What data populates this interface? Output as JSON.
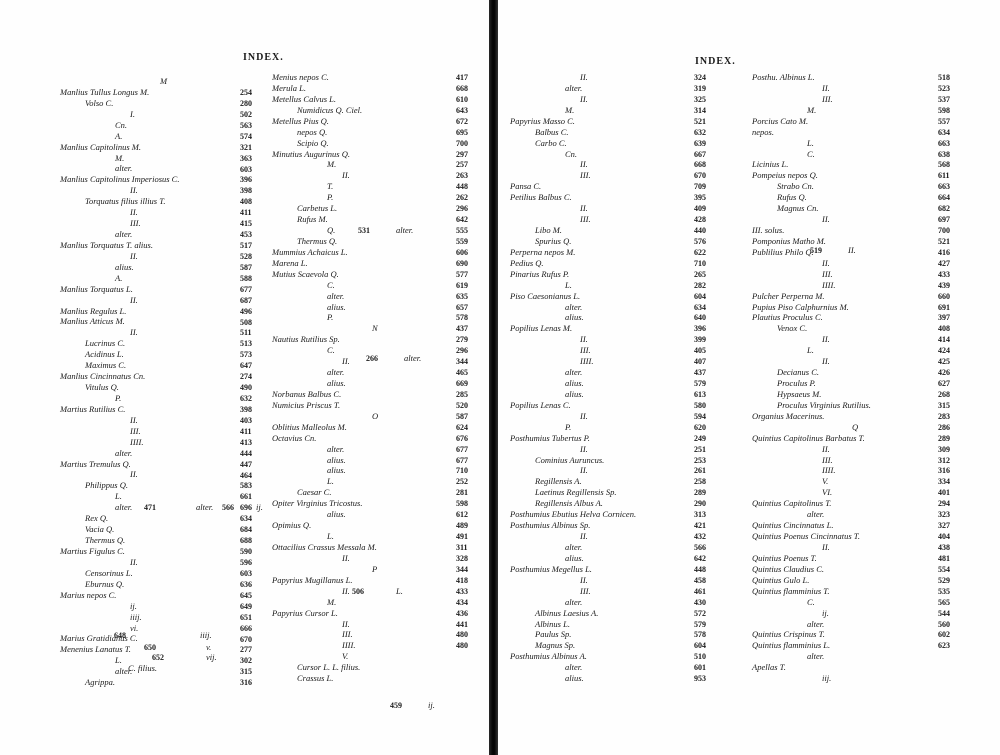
{
  "left_page": {
    "header": "INDEX.",
    "col1": [
      "M",
      "Manlius Tullus Longus M.",
      "Volso C.",
      "I.",
      "Cn.",
      "A.",
      "Manlius Capitolinus M.",
      "M.",
      "alter.",
      "Manlius Capitolinus Imperiosus C.",
      "II.",
      "Torquatus filius illius T.",
      "II.",
      "III.",
      "alter.",
      "Manlius Torquatus T. alius.",
      "II.",
      "alius.",
      "A.",
      "Manlius Torquatus L.",
      "II.",
      "Manlius Regulus L.",
      "Manlius Atticus M.",
      "II.",
      "Lucrinus C.",
      "Acidinus L.",
      "Maximus C.",
      "Manlius Cincinnatus Cn.",
      "Vitulus Q.",
      "P.",
      "Martius Rutilius C.",
      "II.",
      "III.",
      "IIII.",
      "alter.",
      "Martius Tremulus Q.",
      "II.",
      "Philippus Q.",
      "L.",
      "alter.",
      "Rex Q.",
      "Vacia Q.",
      "Thermus Q.",
      "Martius Figulus C.",
      "II.",
      "Censorinus L.",
      "Eburnus Q.",
      "Marius nepos C.",
      "ij.",
      "iiij.",
      "vi.",
      "Marius Gratidianus C.",
      "Menenius Lanatus T.",
      "L.",
      "alter.",
      "Agrippa."
    ],
    "col1_nums": [
      "254",
      "280",
      "502",
      "563",
      "574",
      "321",
      "363",
      "603",
      "396",
      "398",
      "408",
      "411",
      "415",
      "453",
      "517",
      "528",
      "587",
      "588",
      "677",
      "687",
      "496",
      "508",
      "511",
      "513",
      "573",
      "647",
      "274",
      "490",
      "632",
      "398",
      "403",
      "411",
      "413",
      "444",
      "447",
      "464",
      "583",
      "661",
      "696",
      "634",
      "684",
      "688",
      "590",
      "596",
      "603",
      "636",
      "645",
      "649",
      "651",
      "666",
      "670",
      "277",
      "302",
      "315",
      "316"
    ],
    "col2": [
      "Menius nepos C.",
      "Merula L.",
      "Metellus Calvus L.",
      "Numidicus Q. Ciel.",
      "Metellus Pius Q.",
      "nepos Q.",
      "Scipio Q.",
      "Minutius Augurinus Q.",
      "M.",
      "II.",
      "T.",
      "P.",
      "Carbetus L.",
      "Rufus M.",
      "Q.",
      "Thermus Q.",
      "Mummius Achaicus L.",
      "Marena L.",
      "Mutius Scaevola Q.",
      "C.",
      "alter.",
      "alius.",
      "P.",
      "N",
      "Nautius Rutilius Sp.",
      "C.",
      "II.",
      "alter.",
      "alius.",
      "Norbanus Balbus C.",
      "Numicius Priscus T.",
      "O",
      "Oblitius Malleolus M.",
      "Octavius Cn.",
      "alter.",
      "alius.",
      "alius.",
      "L.",
      "Caesar C.",
      "Opiter Virginius Tricostus.",
      "alius.",
      "Opimius Q.",
      "L.",
      "Ottacilius Crassus Messala M.",
      "II.",
      "P",
      "Papyrius Mugillanus L.",
      "II.",
      "M.",
      "Papyrius Cursor L.",
      "II.",
      "III.",
      "IIII.",
      "V.",
      "Cursor L. L. filius.",
      "Crassus L."
    ],
    "col2_nums": [
      "417",
      "668",
      "610",
      "643",
      "672",
      "695",
      "700",
      "297",
      "257",
      "263",
      "448",
      "262",
      "296",
      "642",
      "555",
      "559",
      "606",
      "690",
      "577",
      "619",
      "635",
      "657",
      "578",
      "437",
      "279",
      "296",
      "344",
      "465",
      "669",
      "285",
      "520",
      "587",
      "624",
      "676",
      "677",
      "677",
      "710",
      "252",
      "281",
      "598",
      "612",
      "489",
      "491",
      "311",
      "328",
      "344",
      "418",
      "433",
      "434",
      "436",
      "441",
      "480",
      "480"
    ],
    "inline_extras": [
      "471",
      "alter.",
      "566",
      "ij.",
      "648",
      "iiij.",
      "650",
      "v.",
      "652",
      "vij.",
      "C. filius.",
      "531",
      "alter.",
      "266",
      "alter.",
      "506",
      "L.",
      "459",
      "ij."
    ]
  },
  "right_page": {
    "header": "INDEX.",
    "col1": [
      "II.",
      "alter.",
      "II.",
      "M.",
      "Papyrius Masso C.",
      "Balbus C.",
      "Carbo C.",
      "Cn.",
      "II.",
      "III.",
      "Pansa C.",
      "Petilius Balbus C.",
      "II.",
      "III.",
      "Libo M.",
      "Spurius Q.",
      "Perperna nepos M.",
      "Pedius Q.",
      "Pinarius Rufus P.",
      "L.",
      "Piso Caesonianus L.",
      "alter.",
      "alius.",
      "Popilius Lenas M.",
      "II.",
      "III.",
      "IIII.",
      "alter.",
      "alius.",
      "alius.",
      "Popilius Lenas C.",
      "II.",
      "P.",
      "Posthumius Tubertus P.",
      "II.",
      "Cominius Auruncus.",
      "II.",
      "Regillensis A.",
      "Laetinus Regillensis Sp.",
      "Regillensis Albus A.",
      "Posthumius Ebutius Helva Cornicen.",
      "Posthumius Albinus Sp.",
      "II.",
      "alter.",
      "alius.",
      "Posthumius Megellus L.",
      "II.",
      "III.",
      "alter.",
      "Albinus Laesius A.",
      "Albinus L.",
      "Paulus Sp.",
      "Magnus Sp.",
      "Posthumius Albinus A.",
      "alter.",
      "alius."
    ],
    "col1_nums": [
      "324",
      "319",
      "325",
      "314",
      "521",
      "632",
      "639",
      "667",
      "668",
      "670",
      "709",
      "395",
      "409",
      "428",
      "440",
      "576",
      "622",
      "710",
      "265",
      "282",
      "604",
      "634",
      "640",
      "396",
      "399",
      "405",
      "407",
      "437",
      "579",
      "613",
      "580",
      "594",
      "620",
      "249",
      "251",
      "253",
      "261",
      "258",
      "289",
      "290",
      "313",
      "421",
      "432",
      "566",
      "642",
      "448",
      "458",
      "461",
      "430",
      "572",
      "579",
      "578",
      "604",
      "510",
      "601",
      "953"
    ],
    "col2": [
      "Posthu. Albinus L.",
      "II.",
      "III.",
      "M.",
      "Porcius Cato M.",
      "nepos.",
      "L.",
      "C.",
      "Licinius L.",
      "Pompeius nepos Q.",
      "Strabo Cn.",
      "Rufus Q.",
      "Magnus Cn.",
      "II.",
      "III. solus.",
      "Pomponius Matho M.",
      "Publilius Philo Q.",
      "II.",
      "III.",
      "IIII.",
      "Pulcher Perperna M.",
      "Pupius Piso Calphurnius M.",
      "Plautius Proculus C.",
      "Venox C.",
      "II.",
      "L.",
      "II.",
      "Decianus C.",
      "Proculus P.",
      "Hypsaeus M.",
      "Proculus Virginius Rutilius.",
      "Organius Macerinus.",
      "Q",
      "Quintius Capitolinus Barbatus T.",
      "II.",
      "III.",
      "IIII.",
      "V.",
      "VI.",
      "Quintius Capitolinus T.",
      "alter.",
      "Quintius Cincinnatus L.",
      "Quintius Poenus Cincinnatus T.",
      "II.",
      "Quintius Poenus T.",
      "Quintius Claudius C.",
      "Quintius Gulo L.",
      "Quintius flamminius T.",
      "C.",
      "ij.",
      "alter.",
      "Quintius Crispinus T.",
      "Quintius flamminius L.",
      "alter.",
      "Apellas T.",
      "iij."
    ],
    "col2_nums": [
      "518",
      "523",
      "537",
      "598",
      "557",
      "634",
      "663",
      "638",
      "568",
      "611",
      "663",
      "664",
      "682",
      "697",
      "700",
      "521",
      "416",
      "427",
      "433",
      "439",
      "660",
      "691",
      "397",
      "408",
      "414",
      "424",
      "425",
      "426",
      "627",
      "268",
      "315",
      "283",
      "286",
      "289",
      "309",
      "312",
      "316",
      "334",
      "401",
      "294",
      "323",
      "327",
      "404",
      "438",
      "481",
      "554",
      "529",
      "535",
      "565",
      "544",
      "560",
      "602",
      "623"
    ],
    "inline_extras": [
      "519",
      "II."
    ]
  }
}
